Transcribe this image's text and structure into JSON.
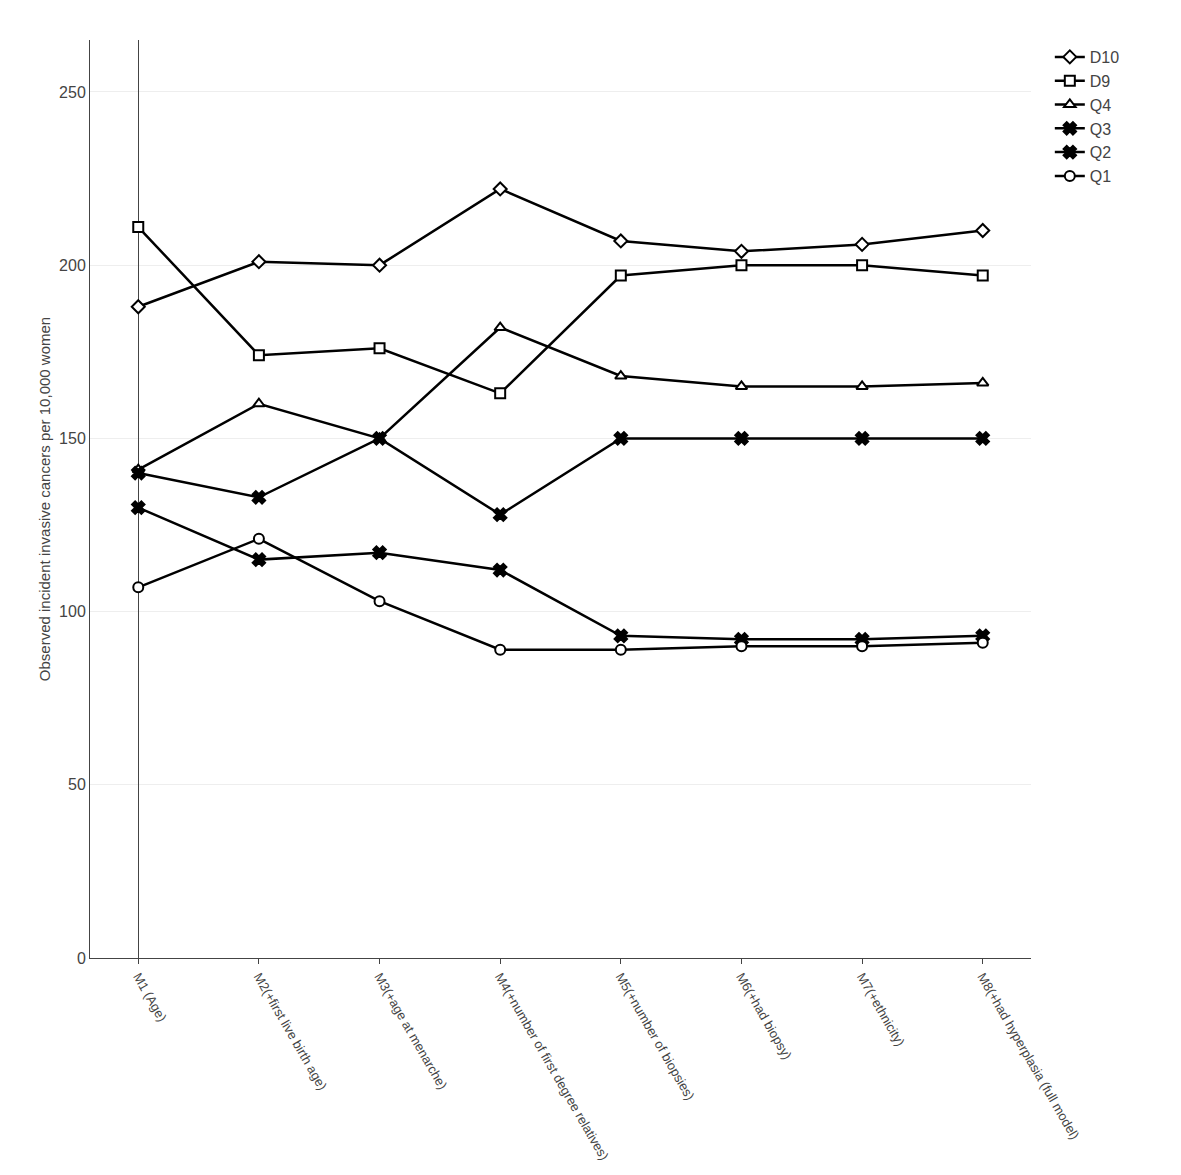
{
  "chart_data": {
    "type": "line",
    "ylabel": "Observed incident invasive cancers per 10,000 women",
    "categories": [
      "M1 (Age)",
      "M2(+first live birth age)",
      "M3(+age at menarche)",
      "M4(+number of first degree relatives)",
      "M5(+number of biopsies)",
      "M6(+had biopsy)",
      "M7(+ethnicity)",
      "M8(+had hyperplasia (full model)"
    ],
    "series": [
      {
        "name": "D10",
        "color": "#000000",
        "marker": "diamond",
        "values": [
          188,
          201,
          200,
          222,
          207,
          204,
          206,
          210
        ]
      },
      {
        "name": "D9",
        "color": "#000000",
        "marker": "square",
        "values": [
          211,
          174,
          176,
          163,
          197,
          200,
          200,
          197
        ]
      },
      {
        "name": "Q4",
        "color": "#000000",
        "marker": "triangle-up",
        "values": [
          141,
          160,
          150,
          182,
          168,
          165,
          165,
          166
        ]
      },
      {
        "name": "Q3",
        "color": "#000000",
        "marker": "x",
        "values": [
          140,
          133,
          150,
          128,
          150,
          150,
          150,
          150
        ]
      },
      {
        "name": "Q2",
        "color": "#000000",
        "marker": "x",
        "values": [
          130,
          115,
          117,
          112,
          93,
          92,
          92,
          93
        ]
      },
      {
        "name": "Q1",
        "color": "#000000",
        "marker": "circle",
        "values": [
          107,
          121,
          103,
          89,
          89,
          90,
          90,
          91
        ]
      }
    ],
    "ylim": [
      0,
      265
    ],
    "yticks": [
      0,
      50,
      100,
      150,
      200,
      250
    ],
    "grid": true,
    "legend": "right"
  }
}
